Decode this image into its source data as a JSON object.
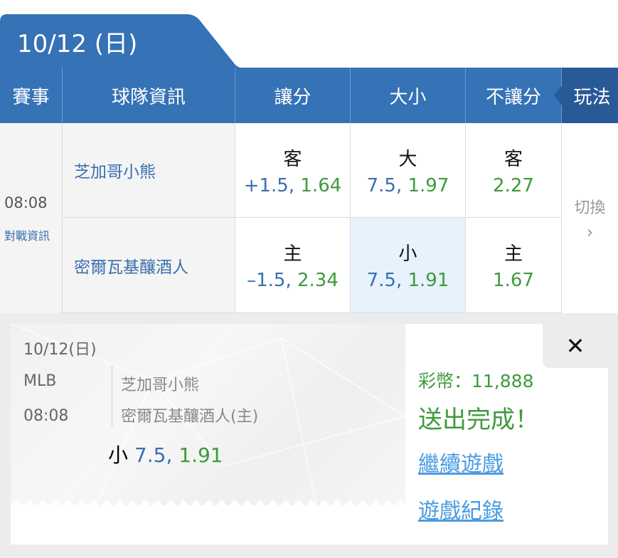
{
  "date_tab": "10/12 (日)",
  "headers": {
    "event": "賽事",
    "team": "球隊資訊",
    "spread": "讓分",
    "total": "大小",
    "moneyline": "不讓分",
    "play": "玩法"
  },
  "match": {
    "time": "08:08",
    "info_link": "對戰資訊",
    "switch": "切換",
    "switch_icon": "chevron-right",
    "away": {
      "name": "芝加哥小熊",
      "spread_label": "客",
      "spread_line": "+1.5,",
      "spread_odds": "1.64",
      "total_label": "大",
      "total_line": "7.5,",
      "total_odds": "1.97",
      "ml_label": "客",
      "ml_odds": "2.27"
    },
    "home": {
      "name": "密爾瓦基釀酒人",
      "spread_label": "主",
      "spread_line": "–1.5,",
      "spread_odds": "2.34",
      "total_label": "小",
      "total_line": "7.5,",
      "total_odds": "1.91",
      "ml_label": "主",
      "ml_odds": "1.67"
    }
  },
  "ticket": {
    "date": "10/12(日)",
    "league": "MLB",
    "time": "08:08",
    "away": "芝加哥小熊",
    "home": "密爾瓦基釀酒人(主)",
    "pick_label": "小",
    "pick_line": "7.5,",
    "pick_odds": "1.91"
  },
  "result": {
    "coins": "彩幣：11,888",
    "status": "送出完成！",
    "continue": "繼續遊戲",
    "history": "遊戲紀錄"
  },
  "colors": {
    "header": "#3572b6",
    "play_header": "#2a5997",
    "green": "#3f9a3c",
    "blue": "#3a6fae",
    "link": "#4a9be0",
    "selected": "#e6f3fc"
  }
}
